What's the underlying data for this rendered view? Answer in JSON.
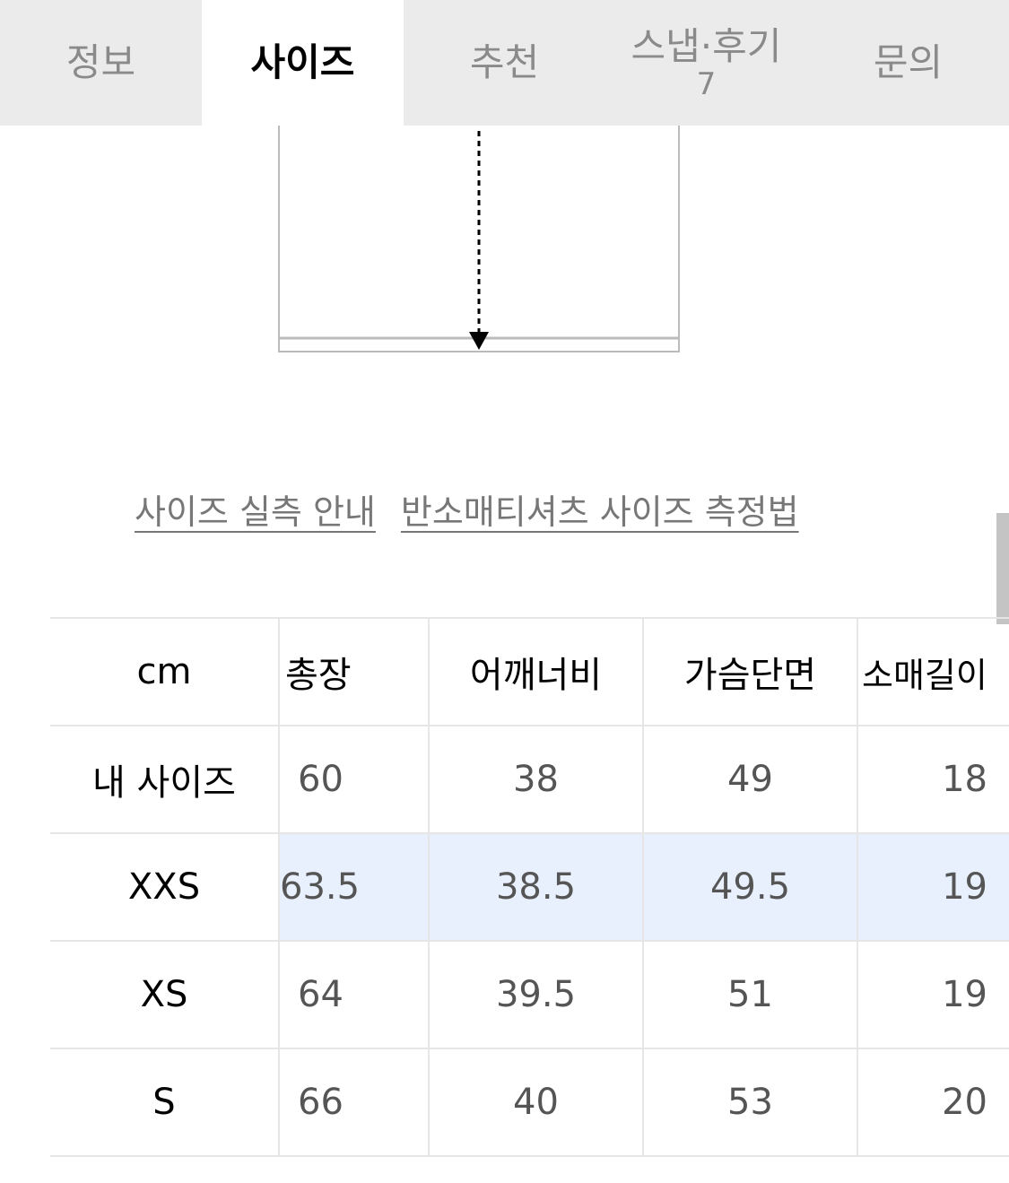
{
  "tabs": [
    {
      "label": "정보",
      "active": false
    },
    {
      "label": "사이즈",
      "active": true
    },
    {
      "label": "추천",
      "active": false
    },
    {
      "label": "스냅·후기",
      "count": "7",
      "active": false
    },
    {
      "label": "문의",
      "active": false
    }
  ],
  "links": {
    "guide": "사이즈 실측 안내",
    "method": "반소매티셔츠 사이즈 측정법"
  },
  "table": {
    "headers": [
      "cm",
      "총장",
      "어깨너비",
      "가슴단면",
      "소매길이"
    ],
    "rows": [
      {
        "cells": [
          "내 사이즈",
          "60",
          "38",
          "49",
          "18"
        ]
      },
      {
        "cells": [
          "XXS",
          "63.5",
          "38.5",
          "49.5",
          "19"
        ],
        "highlighted": true
      },
      {
        "cells": [
          "XS",
          "64",
          "39.5",
          "51",
          "19"
        ]
      },
      {
        "cells": [
          "S",
          "66",
          "40",
          "53",
          "20"
        ]
      }
    ]
  },
  "colors": {
    "tab_bg": "#ebebeb",
    "highlight_row": "#e8effd"
  }
}
